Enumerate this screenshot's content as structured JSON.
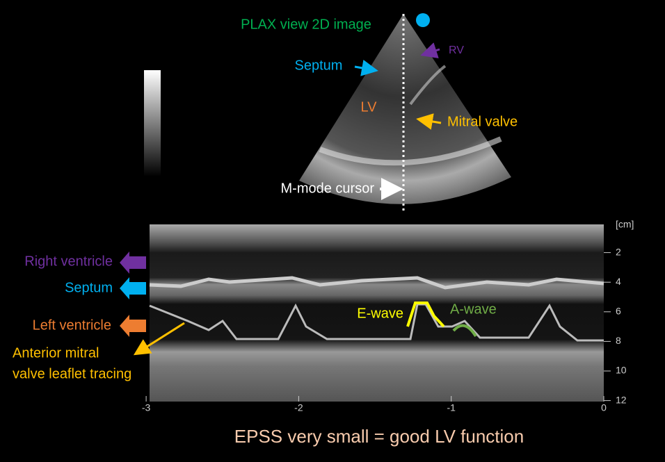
{
  "sector": {
    "title": "PLAX view 2D image",
    "labels": {
      "rv": "RV",
      "septum": "Septum",
      "lv": "LV",
      "mitral_valve": "Mitral valve",
      "cursor": "M-mode cursor"
    }
  },
  "mmode": {
    "labels": {
      "right_ventricle": "Right ventricle",
      "septum": "Septum",
      "left_ventricle": "Left ventricle",
      "leaflet": [
        "Anterior mitral",
        "valve leaflet tracing"
      ],
      "e_wave": "E-wave",
      "a_wave": "A-wave"
    },
    "depth_unit": "[cm]",
    "depth_ticks": [
      2,
      4,
      6,
      8,
      10,
      12
    ],
    "time_ticks": [
      -3,
      -2,
      -1,
      0
    ]
  },
  "footer": "EPSS  very small = good LV function"
}
